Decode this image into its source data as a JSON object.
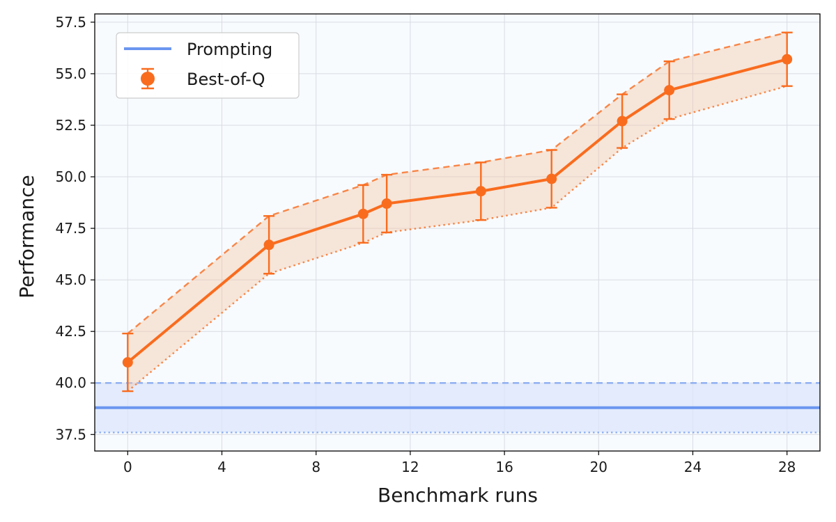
{
  "chart_data": {
    "type": "line",
    "title": "",
    "xlabel": "Benchmark runs",
    "ylabel": "Performance",
    "xlim": [
      -1.4,
      29.4
    ],
    "ylim": [
      36.7,
      57.9
    ],
    "xticks": [
      0,
      4,
      8,
      12,
      16,
      20,
      24,
      28
    ],
    "yticks": [
      37.5,
      40.0,
      42.5,
      45.0,
      47.5,
      50.0,
      52.5,
      55.0,
      57.5
    ],
    "grid": true,
    "legend_position": "top-left",
    "colors": {
      "prompting": "#6b96f0",
      "best_of_q": "#f96c1e",
      "band": "#f5c9ad",
      "prompting_band": "#dce6fb",
      "background": "#f8fbfe"
    },
    "series": [
      {
        "name": "Prompting",
        "kind": "horizontal-line",
        "value": 38.8,
        "upper": 40.0,
        "lower": 37.6
      },
      {
        "name": "Best-of-Q",
        "kind": "errorbar-line",
        "x": [
          0,
          6,
          10,
          11,
          15,
          18,
          21,
          23,
          28
        ],
        "values": [
          41.0,
          46.7,
          48.2,
          48.7,
          49.3,
          49.9,
          52.7,
          54.2,
          55.7
        ],
        "upper": [
          42.4,
          48.1,
          49.6,
          50.1,
          50.7,
          51.3,
          54.0,
          55.6,
          57.0
        ],
        "lower": [
          39.6,
          45.3,
          46.8,
          47.3,
          47.9,
          48.5,
          51.4,
          52.8,
          54.4
        ]
      }
    ],
    "legend": [
      "Prompting",
      "Best-of-Q"
    ]
  }
}
